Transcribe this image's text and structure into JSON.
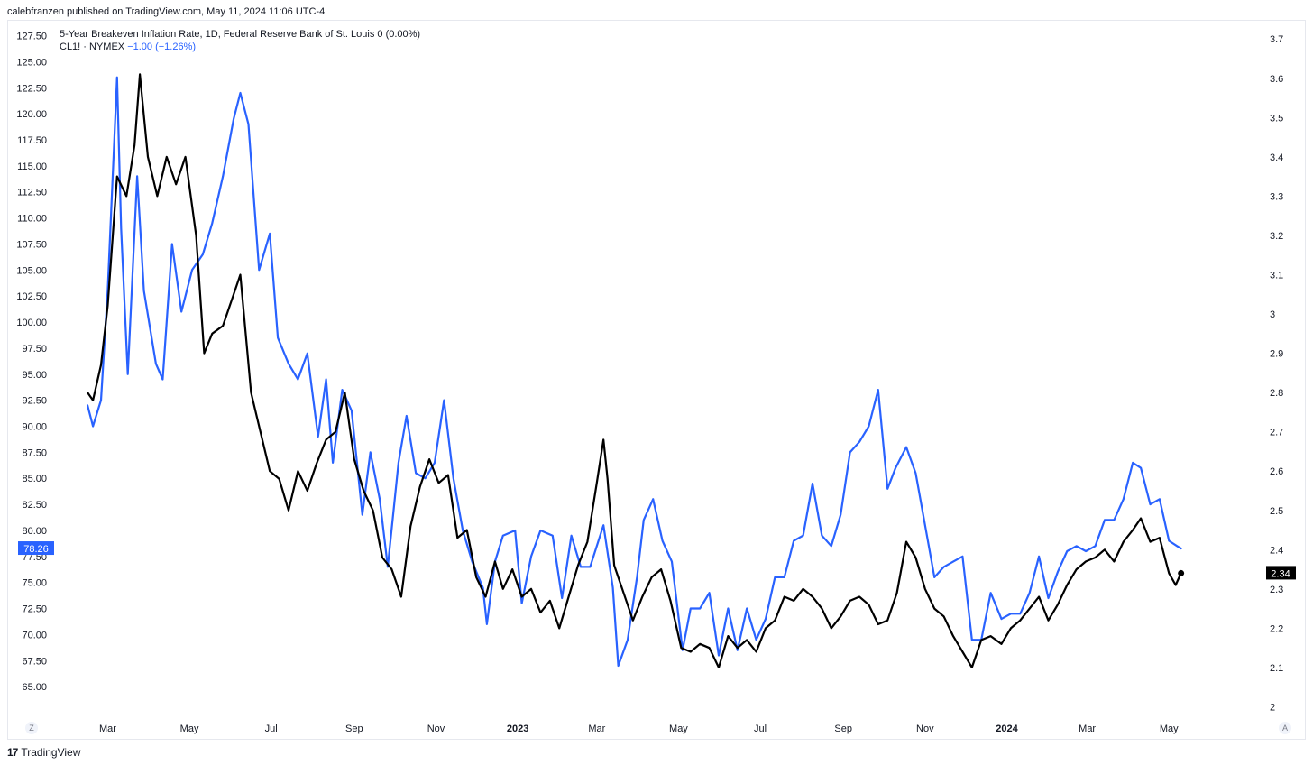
{
  "header": {
    "publisher_line": "calebfranzen published on TradingView.com, May 11, 2024 11:06 UTC-4"
  },
  "legend": {
    "series1_label": "5-Year Breakeven Inflation Rate, 1D, Federal Reserve Bank of St. Louis",
    "series1_value": "0 (0.00%)",
    "series2_label": "CL1! · NYMEX",
    "series2_value": "−1.00 (−1.26%)"
  },
  "footer": {
    "brand_logo": "17",
    "brand": "TradingView"
  },
  "scale_buttons": {
    "left": "Z",
    "right": "A"
  },
  "colors": {
    "crude": "#2962ff",
    "breakeven": "#000000",
    "grid": "#f0f3fa",
    "axis_text": "#131722"
  },
  "chart_data": {
    "type": "line",
    "x_start": "2022-02-14",
    "x_end": "2024-05-10",
    "x_axis_range": [
      "2022-01-20",
      "2024-06-25"
    ],
    "x_tick_labels": [
      {
        "label": "Mar",
        "date": "2022-03-01"
      },
      {
        "label": "May",
        "date": "2022-05-01"
      },
      {
        "label": "Jul",
        "date": "2022-07-01"
      },
      {
        "label": "Sep",
        "date": "2022-09-01"
      },
      {
        "label": "Nov",
        "date": "2022-11-01"
      },
      {
        "label": "2023",
        "date": "2023-01-01",
        "bold": true
      },
      {
        "label": "Mar",
        "date": "2023-03-01"
      },
      {
        "label": "May",
        "date": "2023-05-01"
      },
      {
        "label": "Jul",
        "date": "2023-07-01"
      },
      {
        "label": "Sep",
        "date": "2023-09-01"
      },
      {
        "label": "Nov",
        "date": "2023-11-01"
      },
      {
        "label": "2024",
        "date": "2024-01-01",
        "bold": true
      },
      {
        "label": "Mar",
        "date": "2024-03-01"
      },
      {
        "label": "May",
        "date": "2024-05-01"
      }
    ],
    "left_axis": {
      "ylim": [
        62.5,
        128.5
      ],
      "ticks": [
        "127.50",
        "125.00",
        "122.50",
        "120.00",
        "117.50",
        "115.00",
        "112.50",
        "110.00",
        "107.50",
        "105.00",
        "102.50",
        "100.00",
        "97.50",
        "95.00",
        "92.50",
        "90.00",
        "87.50",
        "85.00",
        "82.50",
        "80.00",
        "77.50",
        "75.00",
        "72.50",
        "70.00",
        "67.50",
        "65.00"
      ]
    },
    "right_axis": {
      "ylim": [
        1.985,
        3.735
      ],
      "ticks": [
        "3.7",
        "3.6",
        "3.5",
        "3.4",
        "3.3",
        "3.2",
        "3.1",
        "3",
        "2.9",
        "2.8",
        "2.7",
        "2.6",
        "2.5",
        "2.4",
        "2.3",
        "2.2",
        "2.1",
        "2"
      ]
    },
    "series": [
      {
        "name": "CL1! · NYMEX",
        "axis": "left",
        "color": "#2962ff",
        "last_value_label": "78.26",
        "last_value": 78.26,
        "points": [
          [
            "2022-02-14",
            92.0
          ],
          [
            "2022-02-18",
            90.0
          ],
          [
            "2022-02-24",
            92.5
          ],
          [
            "2022-03-01",
            103.0
          ],
          [
            "2022-03-08",
            123.5
          ],
          [
            "2022-03-11",
            109.0
          ],
          [
            "2022-03-16",
            95.0
          ],
          [
            "2022-03-23",
            114.0
          ],
          [
            "2022-03-28",
            103.0
          ],
          [
            "2022-04-06",
            96.0
          ],
          [
            "2022-04-11",
            94.5
          ],
          [
            "2022-04-18",
            107.5
          ],
          [
            "2022-04-25",
            101.0
          ],
          [
            "2022-05-03",
            105.0
          ],
          [
            "2022-05-11",
            106.5
          ],
          [
            "2022-05-18",
            109.5
          ],
          [
            "2022-05-26",
            114.0
          ],
          [
            "2022-06-03",
            119.5
          ],
          [
            "2022-06-08",
            122.0
          ],
          [
            "2022-06-14",
            119.0
          ],
          [
            "2022-06-22",
            105.0
          ],
          [
            "2022-06-30",
            108.5
          ],
          [
            "2022-07-06",
            98.5
          ],
          [
            "2022-07-14",
            96.0
          ],
          [
            "2022-07-21",
            94.5
          ],
          [
            "2022-07-28",
            97.0
          ],
          [
            "2022-08-05",
            89.0
          ],
          [
            "2022-08-11",
            94.5
          ],
          [
            "2022-08-16",
            86.5
          ],
          [
            "2022-08-23",
            93.5
          ],
          [
            "2022-08-30",
            91.5
          ],
          [
            "2022-09-07",
            81.5
          ],
          [
            "2022-09-13",
            87.5
          ],
          [
            "2022-09-20",
            83.0
          ],
          [
            "2022-09-26",
            76.5
          ],
          [
            "2022-10-04",
            86.5
          ],
          [
            "2022-10-10",
            91.0
          ],
          [
            "2022-10-17",
            85.5
          ],
          [
            "2022-10-24",
            85.0
          ],
          [
            "2022-10-31",
            86.5
          ],
          [
            "2022-11-07",
            92.5
          ],
          [
            "2022-11-14",
            85.0
          ],
          [
            "2022-11-21",
            80.0
          ],
          [
            "2022-11-28",
            77.0
          ],
          [
            "2022-12-06",
            74.5
          ],
          [
            "2022-12-09",
            71.0
          ],
          [
            "2022-12-15",
            77.0
          ],
          [
            "2022-12-21",
            79.5
          ],
          [
            "2022-12-30",
            80.0
          ],
          [
            "2023-01-04",
            73.0
          ],
          [
            "2023-01-11",
            77.5
          ],
          [
            "2023-01-18",
            80.0
          ],
          [
            "2023-01-27",
            79.5
          ],
          [
            "2023-02-03",
            73.5
          ],
          [
            "2023-02-10",
            79.5
          ],
          [
            "2023-02-17",
            76.5
          ],
          [
            "2023-02-24",
            76.5
          ],
          [
            "2023-03-06",
            80.5
          ],
          [
            "2023-03-13",
            74.5
          ],
          [
            "2023-03-17",
            67.0
          ],
          [
            "2023-03-24",
            69.5
          ],
          [
            "2023-03-31",
            75.5
          ],
          [
            "2023-04-05",
            81.0
          ],
          [
            "2023-04-12",
            83.0
          ],
          [
            "2023-04-19",
            79.0
          ],
          [
            "2023-04-26",
            77.0
          ],
          [
            "2023-05-04",
            68.5
          ],
          [
            "2023-05-10",
            72.5
          ],
          [
            "2023-05-17",
            72.5
          ],
          [
            "2023-05-24",
            74.0
          ],
          [
            "2023-05-31",
            68.0
          ],
          [
            "2023-06-07",
            72.5
          ],
          [
            "2023-06-14",
            68.5
          ],
          [
            "2023-06-21",
            72.5
          ],
          [
            "2023-06-28",
            69.5
          ],
          [
            "2023-07-05",
            71.5
          ],
          [
            "2023-07-12",
            75.5
          ],
          [
            "2023-07-19",
            75.5
          ],
          [
            "2023-07-26",
            79.0
          ],
          [
            "2023-08-02",
            79.5
          ],
          [
            "2023-08-09",
            84.5
          ],
          [
            "2023-08-16",
            79.5
          ],
          [
            "2023-08-23",
            78.5
          ],
          [
            "2023-08-30",
            81.5
          ],
          [
            "2023-09-06",
            87.5
          ],
          [
            "2023-09-13",
            88.5
          ],
          [
            "2023-09-20",
            90.0
          ],
          [
            "2023-09-27",
            93.5
          ],
          [
            "2023-10-04",
            84.0
          ],
          [
            "2023-10-10",
            86.0
          ],
          [
            "2023-10-18",
            88.0
          ],
          [
            "2023-10-25",
            85.5
          ],
          [
            "2023-11-01",
            80.5
          ],
          [
            "2023-11-08",
            75.5
          ],
          [
            "2023-11-15",
            76.5
          ],
          [
            "2023-11-22",
            77.0
          ],
          [
            "2023-11-29",
            77.5
          ],
          [
            "2023-12-06",
            69.5
          ],
          [
            "2023-12-13",
            69.5
          ],
          [
            "2023-12-20",
            74.0
          ],
          [
            "2023-12-28",
            71.5
          ],
          [
            "2024-01-04",
            72.0
          ],
          [
            "2024-01-11",
            72.0
          ],
          [
            "2024-01-18",
            74.0
          ],
          [
            "2024-01-25",
            77.5
          ],
          [
            "2024-02-01",
            73.5
          ],
          [
            "2024-02-08",
            76.0
          ],
          [
            "2024-02-15",
            78.0
          ],
          [
            "2024-02-22",
            78.5
          ],
          [
            "2024-02-29",
            78.0
          ],
          [
            "2024-03-07",
            78.5
          ],
          [
            "2024-03-14",
            81.0
          ],
          [
            "2024-03-21",
            81.0
          ],
          [
            "2024-03-28",
            83.0
          ],
          [
            "2024-04-04",
            86.5
          ],
          [
            "2024-04-10",
            86.0
          ],
          [
            "2024-04-17",
            82.5
          ],
          [
            "2024-04-24",
            83.0
          ],
          [
            "2024-05-01",
            79.0
          ],
          [
            "2024-05-07",
            78.5
          ],
          [
            "2024-05-10",
            78.26
          ]
        ]
      },
      {
        "name": "5-Year Breakeven Inflation Rate",
        "axis": "right",
        "color": "#000000",
        "last_value_label": "2.34",
        "last_value": 2.34,
        "points": [
          [
            "2022-02-14",
            2.8
          ],
          [
            "2022-02-18",
            2.78
          ],
          [
            "2022-02-24",
            2.87
          ],
          [
            "2022-03-01",
            3.02
          ],
          [
            "2022-03-08",
            3.35
          ],
          [
            "2022-03-15",
            3.3
          ],
          [
            "2022-03-21",
            3.43
          ],
          [
            "2022-03-25",
            3.61
          ],
          [
            "2022-03-31",
            3.4
          ],
          [
            "2022-04-07",
            3.3
          ],
          [
            "2022-04-14",
            3.4
          ],
          [
            "2022-04-21",
            3.33
          ],
          [
            "2022-04-28",
            3.4
          ],
          [
            "2022-05-06",
            3.2
          ],
          [
            "2022-05-12",
            2.9
          ],
          [
            "2022-05-18",
            2.95
          ],
          [
            "2022-05-26",
            2.97
          ],
          [
            "2022-06-03",
            3.05
          ],
          [
            "2022-06-08",
            3.1
          ],
          [
            "2022-06-16",
            2.8
          ],
          [
            "2022-06-23",
            2.7
          ],
          [
            "2022-06-30",
            2.6
          ],
          [
            "2022-07-07",
            2.58
          ],
          [
            "2022-07-14",
            2.5
          ],
          [
            "2022-07-21",
            2.6
          ],
          [
            "2022-07-28",
            2.55
          ],
          [
            "2022-08-04",
            2.62
          ],
          [
            "2022-08-11",
            2.68
          ],
          [
            "2022-08-18",
            2.7
          ],
          [
            "2022-08-25",
            2.8
          ],
          [
            "2022-09-01",
            2.63
          ],
          [
            "2022-09-08",
            2.55
          ],
          [
            "2022-09-15",
            2.5
          ],
          [
            "2022-09-22",
            2.38
          ],
          [
            "2022-09-29",
            2.35
          ],
          [
            "2022-10-06",
            2.28
          ],
          [
            "2022-10-13",
            2.46
          ],
          [
            "2022-10-20",
            2.56
          ],
          [
            "2022-10-27",
            2.63
          ],
          [
            "2022-11-03",
            2.57
          ],
          [
            "2022-11-10",
            2.59
          ],
          [
            "2022-11-17",
            2.43
          ],
          [
            "2022-11-24",
            2.45
          ],
          [
            "2022-12-01",
            2.33
          ],
          [
            "2022-12-08",
            2.28
          ],
          [
            "2022-12-15",
            2.37
          ],
          [
            "2022-12-21",
            2.3
          ],
          [
            "2022-12-28",
            2.35
          ],
          [
            "2023-01-04",
            2.28
          ],
          [
            "2023-01-11",
            2.3
          ],
          [
            "2023-01-18",
            2.24
          ],
          [
            "2023-01-25",
            2.27
          ],
          [
            "2023-02-01",
            2.2
          ],
          [
            "2023-02-08",
            2.28
          ],
          [
            "2023-02-15",
            2.36
          ],
          [
            "2023-02-22",
            2.42
          ],
          [
            "2023-03-01",
            2.57
          ],
          [
            "2023-03-06",
            2.68
          ],
          [
            "2023-03-09",
            2.58
          ],
          [
            "2023-03-14",
            2.36
          ],
          [
            "2023-03-20",
            2.3
          ],
          [
            "2023-03-28",
            2.22
          ],
          [
            "2023-04-04",
            2.28
          ],
          [
            "2023-04-11",
            2.33
          ],
          [
            "2023-04-18",
            2.35
          ],
          [
            "2023-04-25",
            2.27
          ],
          [
            "2023-05-03",
            2.15
          ],
          [
            "2023-05-10",
            2.14
          ],
          [
            "2023-05-17",
            2.16
          ],
          [
            "2023-05-24",
            2.15
          ],
          [
            "2023-05-31",
            2.1
          ],
          [
            "2023-06-07",
            2.18
          ],
          [
            "2023-06-14",
            2.15
          ],
          [
            "2023-06-21",
            2.17
          ],
          [
            "2023-06-28",
            2.14
          ],
          [
            "2023-07-05",
            2.2
          ],
          [
            "2023-07-12",
            2.22
          ],
          [
            "2023-07-19",
            2.28
          ],
          [
            "2023-07-26",
            2.27
          ],
          [
            "2023-08-02",
            2.3
          ],
          [
            "2023-08-09",
            2.28
          ],
          [
            "2023-08-16",
            2.25
          ],
          [
            "2023-08-23",
            2.2
          ],
          [
            "2023-08-30",
            2.23
          ],
          [
            "2023-09-06",
            2.27
          ],
          [
            "2023-09-13",
            2.28
          ],
          [
            "2023-09-20",
            2.26
          ],
          [
            "2023-09-27",
            2.21
          ],
          [
            "2023-10-04",
            2.22
          ],
          [
            "2023-10-11",
            2.29
          ],
          [
            "2023-10-18",
            2.42
          ],
          [
            "2023-10-25",
            2.38
          ],
          [
            "2023-11-01",
            2.3
          ],
          [
            "2023-11-08",
            2.25
          ],
          [
            "2023-11-15",
            2.23
          ],
          [
            "2023-11-22",
            2.18
          ],
          [
            "2023-11-29",
            2.14
          ],
          [
            "2023-12-06",
            2.1
          ],
          [
            "2023-12-13",
            2.17
          ],
          [
            "2023-12-20",
            2.18
          ],
          [
            "2023-12-28",
            2.16
          ],
          [
            "2024-01-04",
            2.2
          ],
          [
            "2024-01-11",
            2.22
          ],
          [
            "2024-01-18",
            2.25
          ],
          [
            "2024-01-25",
            2.28
          ],
          [
            "2024-02-01",
            2.22
          ],
          [
            "2024-02-08",
            2.26
          ],
          [
            "2024-02-15",
            2.31
          ],
          [
            "2024-02-22",
            2.35
          ],
          [
            "2024-02-29",
            2.37
          ],
          [
            "2024-03-07",
            2.38
          ],
          [
            "2024-03-14",
            2.4
          ],
          [
            "2024-03-21",
            2.37
          ],
          [
            "2024-03-28",
            2.42
          ],
          [
            "2024-04-04",
            2.45
          ],
          [
            "2024-04-10",
            2.48
          ],
          [
            "2024-04-17",
            2.42
          ],
          [
            "2024-04-24",
            2.43
          ],
          [
            "2024-05-01",
            2.34
          ],
          [
            "2024-05-06",
            2.31
          ],
          [
            "2024-05-10",
            2.34
          ]
        ]
      }
    ]
  }
}
